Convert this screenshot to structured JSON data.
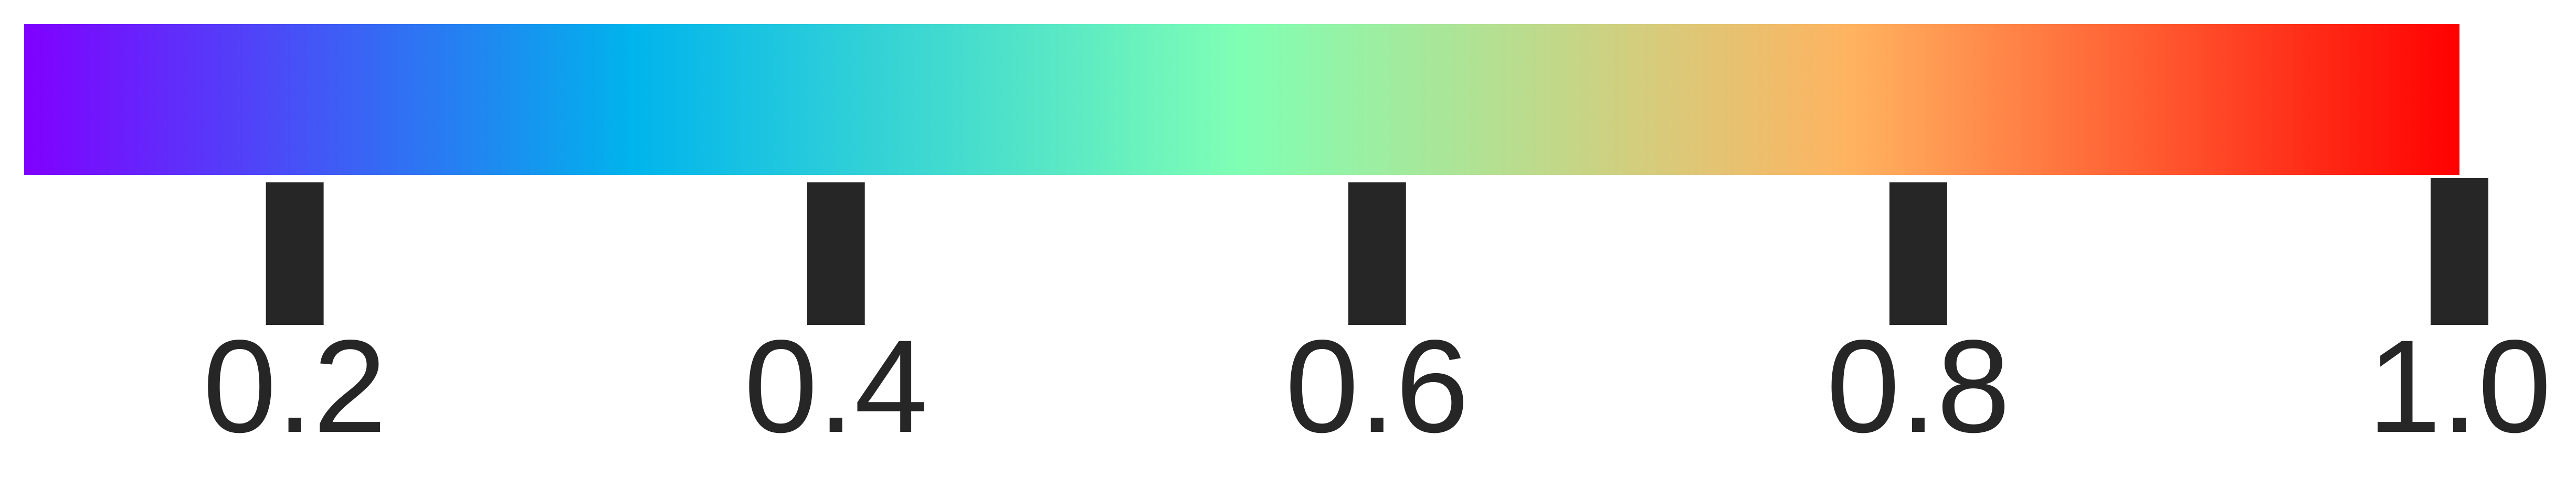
{
  "chart_data": {
    "type": "heatmap",
    "title": "",
    "xlabel": "",
    "ylabel": "",
    "colormap": "rainbow",
    "orientation": "horizontal",
    "range": [
      0.1,
      1.0
    ],
    "ticks": [
      {
        "value": 0.2,
        "label": "0.2"
      },
      {
        "value": 0.4,
        "label": "0.4"
      },
      {
        "value": 0.6,
        "label": "0.6"
      },
      {
        "value": 0.8,
        "label": "0.8"
      },
      {
        "value": 1.0,
        "label": "1.0"
      }
    ],
    "color_stops": [
      {
        "value": 0.1,
        "color": "#8000ff"
      },
      {
        "value": 0.325,
        "color": "#00b4ec"
      },
      {
        "value": 0.55,
        "color": "#80ffb4"
      },
      {
        "value": 0.775,
        "color": "#ffb360"
      },
      {
        "value": 1.0,
        "color": "#ff0000"
      }
    ]
  },
  "colors": {
    "tick": "#262626",
    "background": "#ffffff"
  }
}
